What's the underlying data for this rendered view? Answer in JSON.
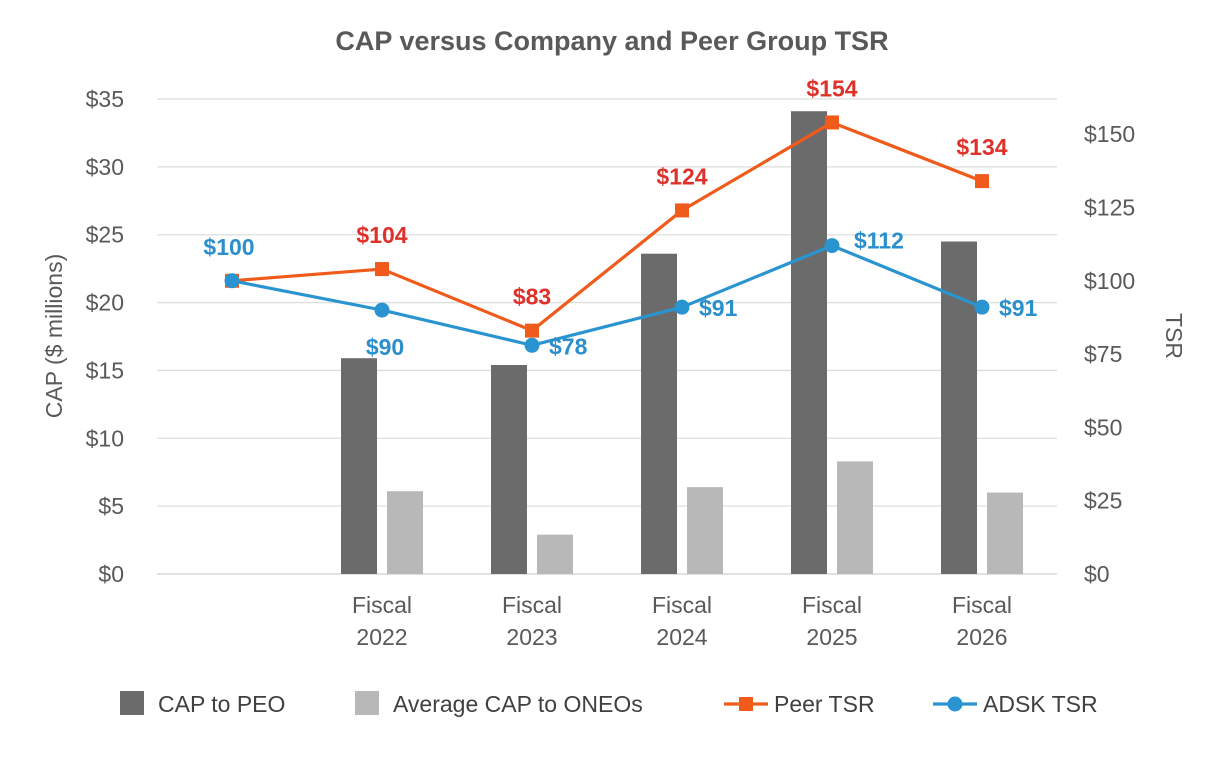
{
  "chart_data": {
    "type": "bar",
    "title": "CAP versus Company and Peer Group TSR",
    "categories": [
      "",
      "Fiscal 2022",
      "Fiscal 2023",
      "Fiscal 2024",
      "Fiscal 2025",
      "Fiscal 2026"
    ],
    "category_lines": [
      [
        ""
      ],
      [
        "Fiscal",
        "2022"
      ],
      [
        "Fiscal",
        "2023"
      ],
      [
        "Fiscal",
        "2024"
      ],
      [
        "Fiscal",
        "2025"
      ],
      [
        "Fiscal",
        "2026"
      ]
    ],
    "ylabel": "CAP ($ millions)",
    "ylim": [
      0,
      35
    ],
    "yticks": [
      0,
      5,
      10,
      15,
      20,
      25,
      30,
      35
    ],
    "ytick_labels": [
      "$0",
      "$5",
      "$10",
      "$15",
      "$20",
      "$25",
      "$30",
      "$35"
    ],
    "y2label": "TSR",
    "y2lim": [
      0,
      162
    ],
    "y2ticks": [
      0,
      25,
      50,
      75,
      100,
      125,
      150
    ],
    "y2tick_labels": [
      "$0",
      "$25",
      "$50",
      "$75",
      "$100",
      "$125",
      "$150"
    ],
    "grid": true,
    "legend_position": "bottom",
    "series": [
      {
        "name": "CAP to PEO",
        "kind": "bar",
        "axis": "left",
        "color": "#6b6b6b",
        "values": [
          null,
          15.9,
          15.4,
          23.6,
          34.1,
          24.5
        ]
      },
      {
        "name": "Average CAP to ONEOs",
        "kind": "bar",
        "axis": "left",
        "color": "#b8b8b8",
        "values": [
          null,
          6.1,
          2.9,
          6.4,
          8.3,
          6.0
        ]
      },
      {
        "name": "Peer TSR",
        "kind": "line",
        "marker": "square",
        "axis": "right",
        "color": "#f05a1a",
        "label_color": "#e0302a",
        "values": [
          100,
          104,
          83,
          124,
          154,
          134
        ],
        "labels": [
          "$100",
          "$104",
          "$83",
          "$124",
          "$154",
          "$134"
        ]
      },
      {
        "name": "ADSK TSR",
        "kind": "line",
        "marker": "circle",
        "axis": "right",
        "color": "#2a94d0",
        "label_color": "#2a8fcc",
        "values": [
          100,
          90,
          78,
          91,
          112,
          91
        ],
        "labels": [
          "$100",
          "$90",
          "$78",
          "$91",
          "$112",
          "$91"
        ]
      }
    ]
  }
}
